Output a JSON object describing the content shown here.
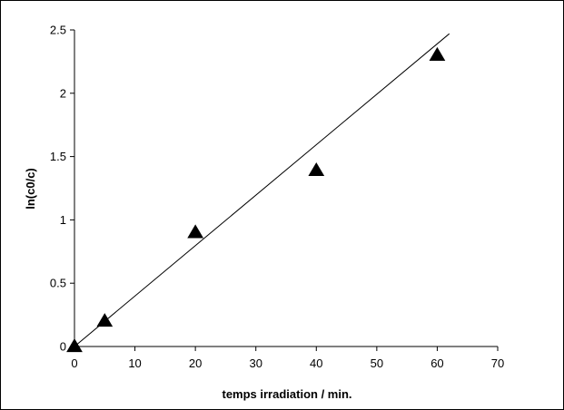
{
  "chart_data": {
    "type": "scatter",
    "title": "",
    "xlabel": "temps irradiation / min.",
    "ylabel": "ln(c0/c)",
    "xlim": [
      0,
      70
    ],
    "ylim": [
      0,
      2.5
    ],
    "xticks": [
      0,
      10,
      20,
      30,
      40,
      50,
      60,
      70
    ],
    "yticks": [
      0,
      0.5,
      1,
      1.5,
      2,
      2.5
    ],
    "xtick_labels": [
      "0",
      "10",
      "20",
      "30",
      "40",
      "50",
      "60",
      "70"
    ],
    "ytick_labels": [
      "0",
      "0.5",
      "1",
      "1.5",
      "2",
      "2.5"
    ],
    "grid": false,
    "legend": "none",
    "series": [
      {
        "marker": "triangle",
        "color": "#000000",
        "x": [
          0,
          5,
          20,
          40,
          60
        ],
        "y": [
          0,
          0.2,
          0.9,
          1.39,
          2.3
        ]
      }
    ],
    "trendline": {
      "type": "linear",
      "color": "#000000",
      "x": [
        0,
        62
      ],
      "y": [
        0,
        2.47
      ]
    }
  }
}
